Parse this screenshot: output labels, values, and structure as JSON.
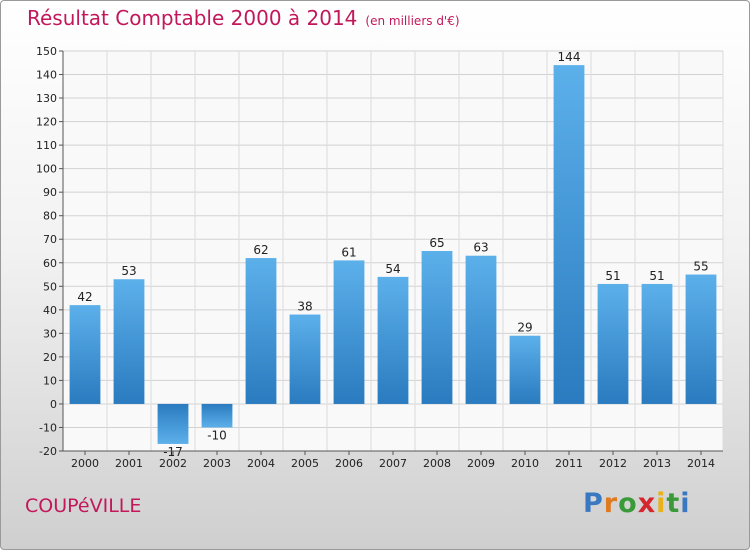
{
  "title": "Résultat Comptable 2000 à 2014",
  "subtitle": "(en milliers d'€)",
  "commune": "COUPéVILLE",
  "logo": {
    "letters": [
      {
        "ch": "P",
        "color": "#3a78c2"
      },
      {
        "ch": "r",
        "color": "#e07a1f"
      },
      {
        "ch": "o",
        "color": "#3a9a3a"
      },
      {
        "ch": "x",
        "color": "#d4262c"
      },
      {
        "ch": "i",
        "color": "#e8b21a"
      },
      {
        "ch": "t",
        "color": "#3a9a3a"
      },
      {
        "ch": "i",
        "color": "#3a78c2"
      }
    ]
  },
  "chart_data": {
    "type": "bar",
    "categories": [
      "2000",
      "2001",
      "2002",
      "2003",
      "2004",
      "2005",
      "2006",
      "2007",
      "2008",
      "2009",
      "2010",
      "2011",
      "2012",
      "2013",
      "2014"
    ],
    "values": [
      42,
      53,
      -17,
      -10,
      62,
      38,
      61,
      54,
      65,
      63,
      29,
      144,
      51,
      51,
      55
    ],
    "data_labels": [
      "42",
      "53",
      "-17",
      "-10",
      "62",
      "38",
      "61",
      "54",
      "65",
      "63",
      "29",
      "144",
      "51",
      "51",
      "55"
    ],
    "ylim": [
      -20,
      150
    ],
    "yticks": [
      -20,
      -10,
      0,
      10,
      20,
      30,
      40,
      50,
      60,
      70,
      80,
      90,
      100,
      110,
      120,
      130,
      140,
      150
    ],
    "grid": true,
    "bar_color": "#3d8fd6"
  }
}
